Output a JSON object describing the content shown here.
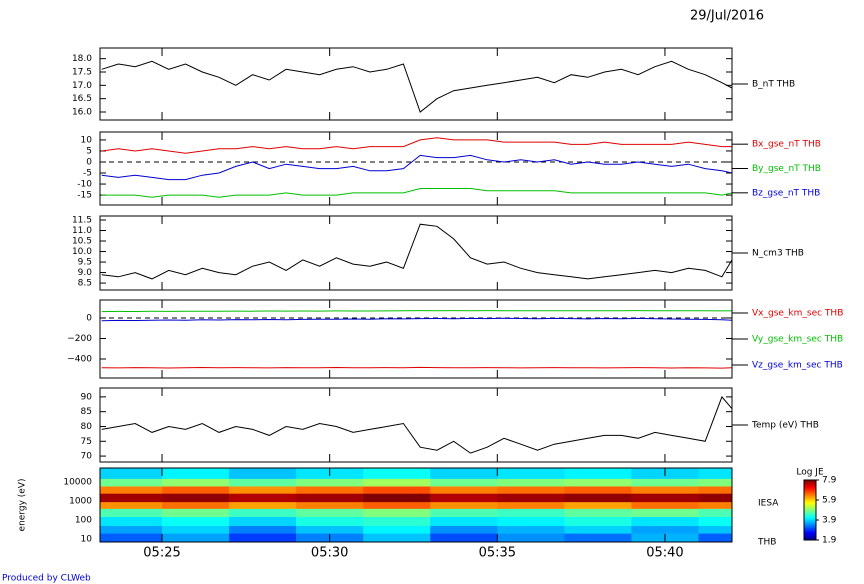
{
  "date": "29/Jul/2016",
  "footer": "Produced by CLWeb",
  "chart_data": [
    {
      "type": "line",
      "x": [
        23.2,
        23.7,
        24.2,
        24.7,
        25.2,
        25.7,
        26.2,
        26.7,
        27.2,
        27.7,
        28.2,
        28.7,
        29.2,
        29.7,
        30.2,
        30.7,
        31.2,
        31.7,
        32.2,
        32.7,
        33.2,
        33.7,
        34.2,
        34.7,
        35.2,
        35.7,
        36.2,
        36.7,
        37.2,
        37.7,
        38.2,
        38.7,
        39.2,
        39.7,
        40.2,
        40.7,
        41.2,
        41.7,
        42.0
      ],
      "series": [
        {
          "name": "B_nT THB",
          "color": "#000000",
          "values": [
            17.6,
            17.8,
            17.7,
            17.9,
            17.6,
            17.8,
            17.5,
            17.3,
            17.0,
            17.4,
            17.2,
            17.6,
            17.5,
            17.4,
            17.6,
            17.7,
            17.5,
            17.6,
            17.8,
            16.0,
            16.5,
            16.8,
            16.9,
            17.0,
            17.1,
            17.2,
            17.3,
            17.1,
            17.4,
            17.3,
            17.5,
            17.6,
            17.4,
            17.7,
            17.9,
            17.6,
            17.4,
            17.1,
            16.9
          ]
        }
      ],
      "xlim": [
        23.15,
        42.0
      ],
      "ylim": [
        15.7,
        18.4
      ],
      "yticks": [
        {
          "value": 16,
          "label": "16.0"
        },
        16.5,
        {
          "value": 17,
          "label": "17.0"
        },
        17.5,
        {
          "value": 18,
          "label": "18.0"
        }
      ]
    },
    {
      "type": "line",
      "x": [
        23.2,
        23.7,
        24.2,
        24.7,
        25.2,
        25.7,
        26.2,
        26.7,
        27.2,
        27.7,
        28.2,
        28.7,
        29.2,
        29.7,
        30.2,
        30.7,
        31.2,
        31.7,
        32.2,
        32.7,
        33.2,
        33.7,
        34.2,
        34.7,
        35.2,
        35.7,
        36.2,
        36.7,
        37.2,
        37.7,
        38.2,
        38.7,
        39.2,
        39.7,
        40.2,
        40.7,
        41.2,
        41.7,
        42.0
      ],
      "series": [
        {
          "name": "Bx_gse_nT THB",
          "color": "#e00000",
          "values": [
            5,
            6,
            5,
            6,
            5,
            4,
            5,
            6,
            6,
            7,
            6,
            7,
            6,
            6,
            7,
            6,
            7,
            7,
            7,
            10,
            11,
            10,
            10,
            10,
            9,
            9,
            9,
            9,
            8,
            8,
            9,
            8,
            8,
            8,
            8,
            9,
            8,
            7,
            7
          ]
        },
        {
          "name": "By_gse_nT THB",
          "color": "#00c000",
          "values": [
            -15,
            -15,
            -15,
            -16,
            -15,
            -15,
            -15,
            -16,
            -15,
            -15,
            -15,
            -14,
            -15,
            -15,
            -15,
            -14,
            -14,
            -14,
            -14,
            -12,
            -12,
            -12,
            -12,
            -13,
            -13,
            -13,
            -13,
            -13,
            -14,
            -14,
            -14,
            -14,
            -14,
            -14,
            -14,
            -14,
            -14,
            -15,
            -14
          ]
        },
        {
          "name": "Bz_gse_nT THB",
          "color": "#0000d0",
          "values": [
            -6,
            -7,
            -6,
            -7,
            -8,
            -8,
            -6,
            -5,
            -2,
            0,
            -3,
            -1,
            -2,
            -3,
            -3,
            -2,
            -4,
            -4,
            -3,
            3,
            2,
            2,
            3,
            1,
            0,
            1,
            0,
            1,
            -1,
            0,
            -1,
            -1,
            0,
            -1,
            -2,
            -1,
            -3,
            -4,
            -5
          ]
        }
      ],
      "xlim": [
        23.15,
        42.0
      ],
      "ylim": [
        -19.5,
        13.6
      ],
      "yticks": [
        -15,
        -10,
        -5,
        0,
        5,
        10
      ],
      "zero_line": true
    },
    {
      "type": "line",
      "x": [
        23.2,
        23.7,
        24.2,
        24.7,
        25.2,
        25.7,
        26.2,
        26.7,
        27.2,
        27.7,
        28.2,
        28.7,
        29.2,
        29.7,
        30.2,
        30.7,
        31.2,
        31.7,
        32.2,
        32.7,
        33.2,
        33.7,
        34.2,
        34.7,
        35.2,
        35.7,
        36.2,
        36.7,
        37.2,
        37.7,
        38.2,
        38.7,
        39.2,
        39.7,
        40.2,
        40.7,
        41.2,
        41.7,
        42.0
      ],
      "series": [
        {
          "name": "N_cm3 THB",
          "color": "#000000",
          "values": [
            8.9,
            8.8,
            9.0,
            8.7,
            9.1,
            8.9,
            9.2,
            9.0,
            8.9,
            9.3,
            9.5,
            9.1,
            9.6,
            9.3,
            9.7,
            9.4,
            9.3,
            9.5,
            9.2,
            11.3,
            11.2,
            10.6,
            9.7,
            9.4,
            9.5,
            9.2,
            9.0,
            8.9,
            8.8,
            8.7,
            8.8,
            8.9,
            9.0,
            9.1,
            9.0,
            9.2,
            9.1,
            8.8,
            9.6
          ]
        }
      ],
      "xlim": [
        23.15,
        42.0
      ],
      "ylim": [
        8.17,
        11.69
      ],
      "yticks": [
        8.5,
        {
          "value": 9,
          "label": "9.0"
        },
        9.5,
        {
          "value": 10,
          "label": "10.0"
        },
        10.5,
        {
          "value": 11,
          "label": "11.0"
        },
        11.5
      ]
    },
    {
      "type": "line",
      "x": [
        23.2,
        23.7,
        24.2,
        24.7,
        25.2,
        25.7,
        26.2,
        26.7,
        27.2,
        27.7,
        28.2,
        28.7,
        29.2,
        29.7,
        30.2,
        30.7,
        31.2,
        31.7,
        32.2,
        32.7,
        33.2,
        33.7,
        34.2,
        34.7,
        35.2,
        35.7,
        36.2,
        36.7,
        37.2,
        37.7,
        38.2,
        38.7,
        39.2,
        39.7,
        40.2,
        40.7,
        41.2,
        41.7,
        42.0
      ],
      "series": [
        {
          "name": "Vx_gse_km_sec THB",
          "color": "#e00000",
          "values": [
            -485,
            -487,
            -484,
            -486,
            -488,
            -485,
            -483,
            -486,
            -484,
            -485,
            -487,
            -484,
            -486,
            -485,
            -483,
            -485,
            -486,
            -484,
            -485,
            -482,
            -484,
            -485,
            -486,
            -484,
            -485,
            -487,
            -485,
            -484,
            -486,
            -485,
            -487,
            -485,
            -484,
            -486,
            -488,
            -485,
            -487,
            -489,
            -486
          ]
        },
        {
          "name": "Vy_gse_km_sec THB",
          "color": "#00c000",
          "values": [
            62,
            64,
            63,
            65,
            64,
            66,
            65,
            66,
            67,
            66,
            68,
            67,
            68,
            67,
            69,
            68,
            68,
            69,
            70,
            72,
            71,
            72,
            71,
            72,
            71,
            70,
            71,
            70,
            71,
            70,
            71,
            70,
            72,
            71,
            70,
            71,
            70,
            69,
            70
          ]
        },
        {
          "name": "Vz_gse_km_sec THB",
          "color": "#0000d0",
          "values": [
            -28,
            -24,
            -25,
            -22,
            -20,
            -22,
            -18,
            -20,
            -16,
            -18,
            -15,
            -17,
            -14,
            -13,
            -12,
            -10,
            -12,
            -8,
            -9,
            -6,
            -5,
            -7,
            -4,
            -6,
            -3,
            -5,
            -8,
            -4,
            -6,
            -9,
            -5,
            -7,
            -4,
            -8,
            -10,
            -12,
            -14,
            -18,
            -22
          ]
        }
      ],
      "xlim": [
        23.15,
        42.0
      ],
      "ylim": [
        -585,
        175
      ],
      "yticks": [
        {
          "value": -400,
          "label": "−400"
        },
        {
          "value": -200,
          "label": "−200"
        },
        0
      ],
      "zero_line": true
    },
    {
      "type": "line",
      "x": [
        23.2,
        23.7,
        24.2,
        24.7,
        25.2,
        25.7,
        26.2,
        26.7,
        27.2,
        27.7,
        28.2,
        28.7,
        29.2,
        29.7,
        30.2,
        30.7,
        31.2,
        31.7,
        32.2,
        32.7,
        33.2,
        33.7,
        34.2,
        34.7,
        35.2,
        35.7,
        36.2,
        36.7,
        37.2,
        37.7,
        38.2,
        38.7,
        39.2,
        39.7,
        40.2,
        40.7,
        41.2,
        41.7,
        42.0
      ],
      "series": [
        {
          "name": "Temp (eV) THB",
          "color": "#000000",
          "values": [
            79,
            80,
            81,
            78,
            80,
            79,
            81,
            78,
            80,
            79,
            77,
            80,
            79,
            81,
            80,
            78,
            79,
            80,
            81,
            73,
            72,
            75,
            71,
            73,
            76,
            74,
            72,
            74,
            75,
            76,
            77,
            77,
            76,
            78,
            77,
            76,
            75,
            90,
            86
          ]
        }
      ],
      "xlim": [
        23.15,
        42.0
      ],
      "ylim": [
        68,
        93
      ],
      "yticks": [
        70,
        75,
        80,
        85,
        90
      ]
    },
    {
      "type": "spectrogram",
      "ylabel": "energy (eV)",
      "labels": [
        "IESA",
        "THB"
      ],
      "xbins": [
        23.15,
        25,
        27,
        29,
        31,
        33,
        35,
        37,
        39,
        41,
        42.0
      ],
      "ybins": [
        7,
        20,
        50,
        150,
        400,
        900,
        2500,
        6000,
        15000,
        54000
      ],
      "z": [
        [
          3.2,
          3.6,
          3.0,
          3.4,
          3.8,
          3.1,
          3.5,
          3.3,
          3.7,
          3.2
        ],
        [
          3.6,
          3.9,
          3.4,
          3.8,
          4.1,
          3.5,
          3.7,
          3.9,
          3.6,
          3.8
        ],
        [
          4.0,
          4.2,
          3.9,
          4.3,
          4.4,
          4.0,
          4.1,
          4.3,
          4.0,
          4.2
        ],
        [
          4.6,
          4.8,
          4.5,
          4.7,
          4.9,
          4.6,
          4.5,
          4.7,
          4.8,
          4.6
        ],
        [
          6.3,
          6.5,
          6.2,
          6.4,
          6.6,
          6.3,
          6.4,
          6.2,
          6.5,
          6.4
        ],
        [
          7.7,
          7.8,
          7.6,
          7.7,
          7.9,
          7.6,
          7.7,
          7.8,
          7.7,
          7.8
        ],
        [
          6.4,
          6.6,
          6.3,
          6.5,
          6.7,
          6.4,
          6.5,
          6.6,
          6.4,
          6.5
        ],
        [
          4.8,
          5.0,
          4.7,
          4.9,
          5.1,
          4.8,
          4.9,
          5.0,
          4.8,
          4.9
        ],
        [
          3.9,
          4.1,
          3.8,
          4.0,
          4.2,
          3.9,
          4.0,
          4.1,
          3.9,
          4.0
        ]
      ],
      "xlim": [
        23.15,
        42.0
      ],
      "ylim": [
        7,
        54000
      ],
      "ylog": true,
      "xticks": [
        {
          "value": 25,
          "label": "05:25"
        },
        {
          "value": 30,
          "label": "05:30"
        },
        {
          "value": 35,
          "label": "05:35"
        },
        {
          "value": 40,
          "label": "05:40"
        }
      ],
      "yticks": [
        10,
        100,
        1000,
        10000
      ],
      "colorbar_title": "Log JE",
      "zlim": [
        1.9,
        7.9
      ],
      "zticks": [
        1.9,
        3.9,
        5.9,
        7.9
      ]
    }
  ]
}
